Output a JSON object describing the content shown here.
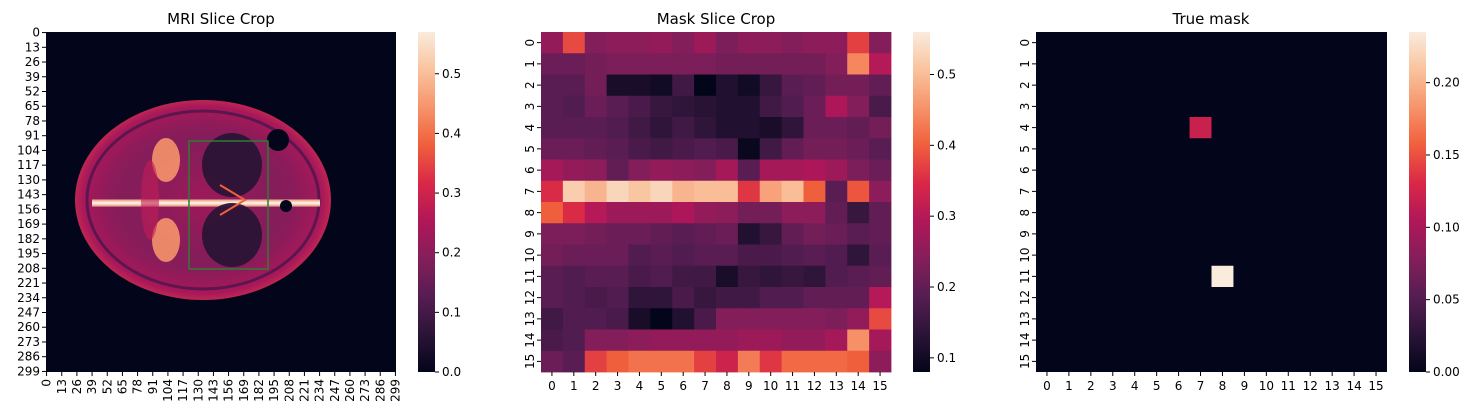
{
  "figure": {
    "panels": [
      {
        "title": "MRI Slice Crop"
      },
      {
        "title": "Mask Slice Crop"
      },
      {
        "title": "True mask"
      }
    ]
  },
  "colormap": {
    "name": "rocket",
    "stops": [
      "#03051a",
      "#2b1437",
      "#561d52",
      "#841e5a",
      "#b01759",
      "#d92847",
      "#f05f3c",
      "#f6936a",
      "#f9c39e",
      "#faebdd"
    ]
  },
  "chart_data": [
    {
      "type": "heatmap",
      "title": "MRI Slice Crop",
      "xlabel": "",
      "ylabel": "",
      "x_tick_labels": [
        "0",
        "13",
        "26",
        "39",
        "52",
        "65",
        "78",
        "91",
        "104",
        "117",
        "130",
        "143",
        "156",
        "169",
        "182",
        "195",
        "208",
        "221",
        "234",
        "247",
        "260",
        "273",
        "286",
        "299"
      ],
      "y_tick_labels": [
        "0",
        "13",
        "26",
        "39",
        "52",
        "65",
        "78",
        "91",
        "104",
        "117",
        "130",
        "143",
        "156",
        "169",
        "182",
        "195",
        "208",
        "221",
        "234",
        "247",
        "260",
        "273",
        "286",
        "299"
      ],
      "shape": [
        300,
        300
      ],
      "image_description": "axial brain MRI slice, centered, background value 0",
      "overlay_rectangle": {
        "color": "#2e7d32",
        "x_range": [
          124,
          195
        ],
        "y_range": [
          96,
          203
        ]
      },
      "colorbar": {
        "min": 0.0,
        "max": 0.57,
        "ticks": [
          "0.0",
          "0.1",
          "0.2",
          "0.3",
          "0.4",
          "0.5"
        ]
      }
    },
    {
      "type": "heatmap",
      "title": "Mask Slice Crop",
      "xlabel": "",
      "ylabel": "",
      "x_tick_labels": [
        "0",
        "1",
        "2",
        "3",
        "4",
        "5",
        "6",
        "7",
        "8",
        "9",
        "10",
        "11",
        "12",
        "13",
        "14",
        "15"
      ],
      "y_tick_labels": [
        "0",
        "1",
        "2",
        "3",
        "4",
        "5",
        "6",
        "7",
        "8",
        "9",
        "10",
        "11",
        "12",
        "13",
        "14",
        "15"
      ],
      "values": [
        [
          0.26,
          0.38,
          0.24,
          0.25,
          0.25,
          0.26,
          0.24,
          0.27,
          0.23,
          0.25,
          0.25,
          0.24,
          0.25,
          0.25,
          0.37,
          0.24
        ],
        [
          0.21,
          0.21,
          0.22,
          0.23,
          0.23,
          0.23,
          0.23,
          0.23,
          0.22,
          0.22,
          0.22,
          0.22,
          0.22,
          0.24,
          0.44,
          0.3
        ],
        [
          0.19,
          0.19,
          0.22,
          0.11,
          0.11,
          0.1,
          0.16,
          0.08,
          0.12,
          0.1,
          0.15,
          0.19,
          0.2,
          0.22,
          0.22,
          0.2
        ],
        [
          0.19,
          0.18,
          0.21,
          0.19,
          0.17,
          0.15,
          0.14,
          0.13,
          0.12,
          0.12,
          0.16,
          0.18,
          0.21,
          0.29,
          0.24,
          0.17
        ],
        [
          0.19,
          0.19,
          0.19,
          0.18,
          0.16,
          0.14,
          0.16,
          0.14,
          0.12,
          0.12,
          0.11,
          0.14,
          0.21,
          0.21,
          0.2,
          0.22
        ],
        [
          0.21,
          0.21,
          0.2,
          0.19,
          0.17,
          0.16,
          0.17,
          0.18,
          0.17,
          0.09,
          0.16,
          0.2,
          0.22,
          0.22,
          0.21,
          0.19
        ],
        [
          0.28,
          0.26,
          0.25,
          0.2,
          0.24,
          0.26,
          0.25,
          0.24,
          0.28,
          0.19,
          0.28,
          0.28,
          0.29,
          0.27,
          0.23,
          0.21
        ],
        [
          0.35,
          0.52,
          0.49,
          0.53,
          0.51,
          0.53,
          0.49,
          0.5,
          0.5,
          0.36,
          0.47,
          0.5,
          0.4,
          0.19,
          0.39,
          0.25
        ],
        [
          0.4,
          0.35,
          0.3,
          0.27,
          0.27,
          0.27,
          0.29,
          0.26,
          0.25,
          0.22,
          0.22,
          0.25,
          0.25,
          0.2,
          0.15,
          0.2
        ],
        [
          0.23,
          0.23,
          0.22,
          0.21,
          0.21,
          0.2,
          0.19,
          0.2,
          0.21,
          0.12,
          0.15,
          0.2,
          0.22,
          0.21,
          0.19,
          0.2
        ],
        [
          0.22,
          0.21,
          0.21,
          0.21,
          0.18,
          0.19,
          0.18,
          0.19,
          0.19,
          0.17,
          0.17,
          0.18,
          0.19,
          0.18,
          0.14,
          0.19
        ],
        [
          0.19,
          0.18,
          0.19,
          0.19,
          0.17,
          0.18,
          0.16,
          0.16,
          0.11,
          0.15,
          0.14,
          0.15,
          0.14,
          0.18,
          0.19,
          0.2
        ],
        [
          0.19,
          0.18,
          0.17,
          0.18,
          0.14,
          0.14,
          0.17,
          0.15,
          0.16,
          0.16,
          0.18,
          0.18,
          0.2,
          0.2,
          0.2,
          0.3
        ],
        [
          0.16,
          0.18,
          0.18,
          0.17,
          0.11,
          0.08,
          0.12,
          0.17,
          0.24,
          0.24,
          0.24,
          0.24,
          0.24,
          0.23,
          0.26,
          0.38
        ],
        [
          0.17,
          0.18,
          0.24,
          0.24,
          0.25,
          0.26,
          0.26,
          0.26,
          0.26,
          0.27,
          0.27,
          0.26,
          0.26,
          0.28,
          0.45,
          0.28
        ],
        [
          0.21,
          0.19,
          0.37,
          0.4,
          0.42,
          0.42,
          0.42,
          0.37,
          0.33,
          0.43,
          0.36,
          0.41,
          0.41,
          0.41,
          0.4,
          0.25
        ]
      ],
      "colorbar": {
        "min": 0.08,
        "max": 0.56,
        "ticks": [
          "0.1",
          "0.2",
          "0.3",
          "0.4",
          "0.5"
        ]
      }
    },
    {
      "type": "heatmap",
      "title": "True mask",
      "xlabel": "",
      "ylabel": "",
      "x_tick_labels": [
        "0",
        "1",
        "2",
        "3",
        "4",
        "5",
        "6",
        "7",
        "8",
        "9",
        "10",
        "11",
        "12",
        "13",
        "14",
        "15"
      ],
      "y_tick_labels": [
        "0",
        "1",
        "2",
        "3",
        "4",
        "5",
        "6",
        "7",
        "8",
        "9",
        "10",
        "11",
        "12",
        "13",
        "14",
        "15"
      ],
      "nonzero_cells": [
        {
          "row": 4,
          "col": 7,
          "value": 0.12
        },
        {
          "row": 11,
          "col": 8,
          "value": 0.235
        }
      ],
      "shape": [
        16,
        16
      ],
      "colorbar": {
        "min": 0.0,
        "max": 0.235,
        "ticks": [
          "0.00",
          "0.05",
          "0.10",
          "0.15",
          "0.20"
        ]
      }
    }
  ]
}
